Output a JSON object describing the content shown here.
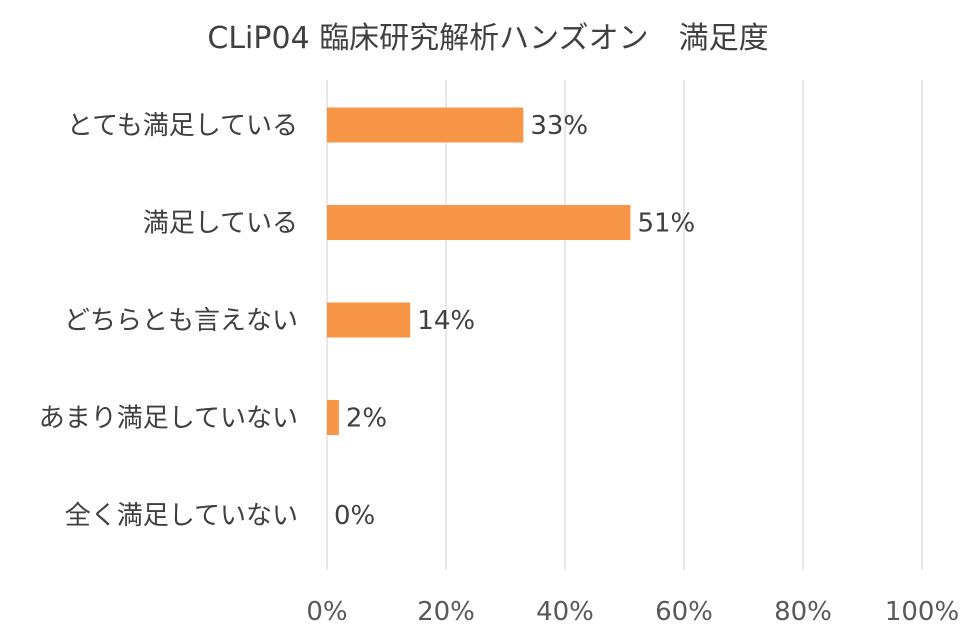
{
  "chart_data": {
    "type": "bar",
    "orientation": "horizontal",
    "title": "CLiP04 臨床研究解析ハンズオン　満足度",
    "categories": [
      "とても満足している",
      "満足している",
      "どちらとも言えない",
      "あまり満足していない",
      "全く満足していない"
    ],
    "values": [
      33,
      51,
      14,
      2,
      0
    ],
    "data_labels": [
      "33%",
      "51%",
      "14%",
      "2%",
      "0%"
    ],
    "xlim": [
      0,
      100
    ],
    "x_ticks": [
      "0%",
      "20%",
      "40%",
      "60%",
      "80%",
      "100%"
    ],
    "xlabel": "",
    "ylabel": "",
    "grid": "vertical",
    "legend": "none",
    "bar_color": "#f79646"
  }
}
